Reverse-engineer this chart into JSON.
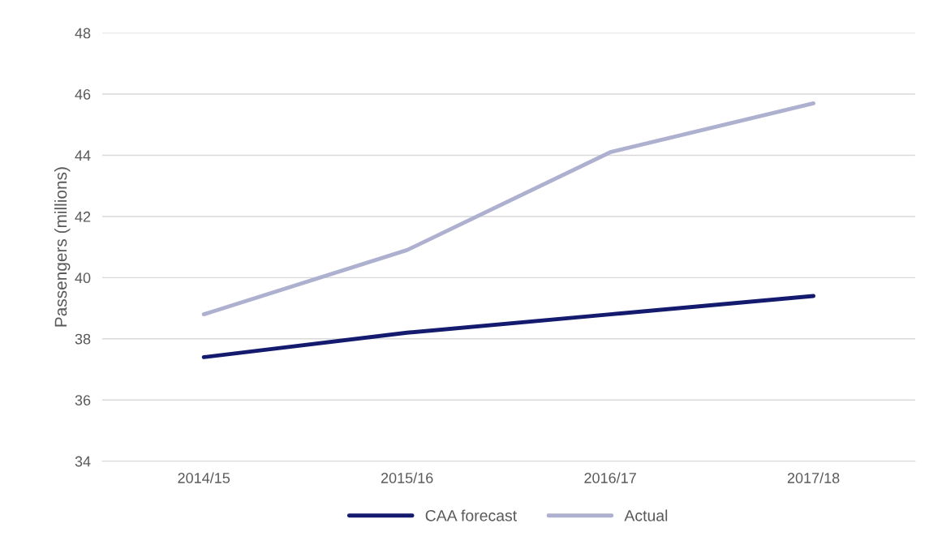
{
  "chart_data": {
    "type": "line",
    "ylabel": "Passengers (millions)",
    "categories": [
      "2014/15",
      "2015/16",
      "2016/17",
      "2017/18"
    ],
    "series": [
      {
        "name": "CAA forecast",
        "color": "#141b6e",
        "values": [
          37.4,
          38.2,
          38.8,
          39.4
        ]
      },
      {
        "name": "Actual",
        "color": "#aeb0d0",
        "values": [
          38.8,
          40.9,
          44.1,
          45.7
        ]
      }
    ],
    "ylim": [
      34,
      48
    ],
    "yticks": [
      34,
      36,
      38,
      40,
      42,
      44,
      46,
      48
    ],
    "grid": "y",
    "legend": "bottom",
    "marker": "none",
    "line_style": "solid"
  }
}
